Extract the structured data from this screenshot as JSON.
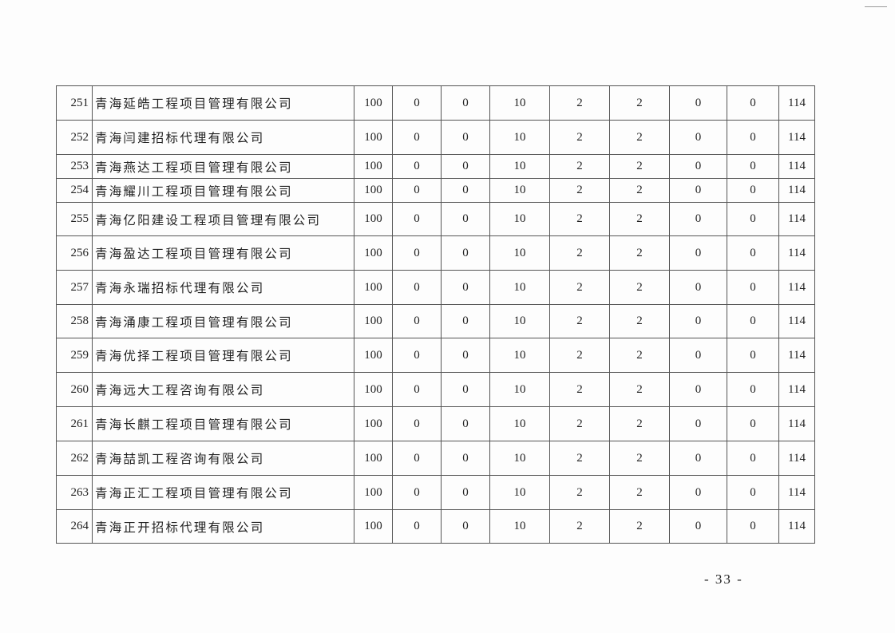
{
  "table": {
    "rows": [
      {
        "no": "251",
        "name": "青海延皓工程项目管理有限公司",
        "values": [
          "100",
          "0",
          "0",
          "10",
          "2",
          "2",
          "0",
          "0",
          "114"
        ]
      },
      {
        "no": "252",
        "name": "青海闫建招标代理有限公司",
        "values": [
          "100",
          "0",
          "0",
          "10",
          "2",
          "2",
          "0",
          "0",
          "114"
        ]
      },
      {
        "no": "253",
        "name": "青海燕达工程项目管理有限公司",
        "values": [
          "100",
          "0",
          "0",
          "10",
          "2",
          "2",
          "0",
          "0",
          "114"
        ]
      },
      {
        "no": "254",
        "name": "青海耀川工程项目管理有限公司",
        "values": [
          "100",
          "0",
          "0",
          "10",
          "2",
          "2",
          "0",
          "0",
          "114"
        ]
      },
      {
        "no": "255",
        "name": "青海亿阳建设工程项目管理有限公司",
        "values": [
          "100",
          "0",
          "0",
          "10",
          "2",
          "2",
          "0",
          "0",
          "114"
        ]
      },
      {
        "no": "256",
        "name": "青海盈达工程项目管理有限公司",
        "values": [
          "100",
          "0",
          "0",
          "10",
          "2",
          "2",
          "0",
          "0",
          "114"
        ]
      },
      {
        "no": "257",
        "name": "青海永瑞招标代理有限公司",
        "values": [
          "100",
          "0",
          "0",
          "10",
          "2",
          "2",
          "0",
          "0",
          "114"
        ]
      },
      {
        "no": "258",
        "name": "青海涌康工程项目管理有限公司",
        "values": [
          "100",
          "0",
          "0",
          "10",
          "2",
          "2",
          "0",
          "0",
          "114"
        ]
      },
      {
        "no": "259",
        "name": "青海优择工程项目管理有限公司",
        "values": [
          "100",
          "0",
          "0",
          "10",
          "2",
          "2",
          "0",
          "0",
          "114"
        ]
      },
      {
        "no": "260",
        "name": "青海远大工程咨询有限公司",
        "values": [
          "100",
          "0",
          "0",
          "10",
          "2",
          "2",
          "0",
          "0",
          "114"
        ]
      },
      {
        "no": "261",
        "name": "青海长麒工程项目管理有限公司",
        "values": [
          "100",
          "0",
          "0",
          "10",
          "2",
          "2",
          "0",
          "0",
          "114"
        ]
      },
      {
        "no": "262",
        "name": "青海喆凯工程咨询有限公司",
        "values": [
          "100",
          "0",
          "0",
          "10",
          "2",
          "2",
          "0",
          "0",
          "114"
        ]
      },
      {
        "no": "263",
        "name": "青海正汇工程项目管理有限公司",
        "values": [
          "100",
          "0",
          "0",
          "10",
          "2",
          "2",
          "0",
          "0",
          "114"
        ]
      },
      {
        "no": "264",
        "name": "青海正开招标代理有限公司",
        "values": [
          "100",
          "0",
          "0",
          "10",
          "2",
          "2",
          "0",
          "0",
          "114"
        ]
      }
    ]
  },
  "footer": {
    "page_number": "- 33 -"
  }
}
